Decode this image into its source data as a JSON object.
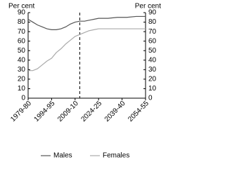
{
  "chart_data": {
    "type": "line",
    "y_label": "Per cent",
    "y2_label": "Per cent",
    "x": [
      1979,
      1982,
      1985,
      1988,
      1991,
      1994,
      1997,
      2000,
      2003,
      2006,
      2009,
      2012,
      2015,
      2018,
      2021,
      2024,
      2030,
      2036,
      2042,
      2048,
      2054
    ],
    "series": [
      {
        "name": "Males",
        "color": "#555555",
        "values": [
          83,
          80,
          77,
          75,
          73,
          72,
          72,
          73,
          75,
          78,
          80,
          81,
          81,
          82,
          83,
          84,
          84,
          85,
          85,
          86,
          86
        ]
      },
      {
        "name": "Females",
        "color": "#aaaaaa",
        "values": [
          29,
          29,
          31,
          35,
          39,
          42,
          48,
          52,
          57,
          61,
          65,
          67,
          69,
          71,
          72,
          73,
          73,
          73,
          73,
          73,
          73
        ]
      }
    ],
    "xlim": [
      1979,
      2054
    ],
    "xticks": [
      {
        "value": 1979,
        "label": "1979-80"
      },
      {
        "value": 1994,
        "label": "1994-95"
      },
      {
        "value": 2009,
        "label": "2009-10"
      },
      {
        "value": 2024,
        "label": "2024-25"
      },
      {
        "value": 2039,
        "label": "2039-40"
      },
      {
        "value": 2054,
        "label": "2054-55"
      }
    ],
    "ylim": [
      0,
      90
    ],
    "yticks": [
      0,
      10,
      20,
      30,
      40,
      50,
      60,
      70,
      80,
      90
    ],
    "y2lim": [
      0,
      90
    ],
    "y2ticks": [
      0,
      10,
      20,
      30,
      40,
      50,
      60,
      70,
      80,
      90
    ],
    "vline": 2012
  }
}
